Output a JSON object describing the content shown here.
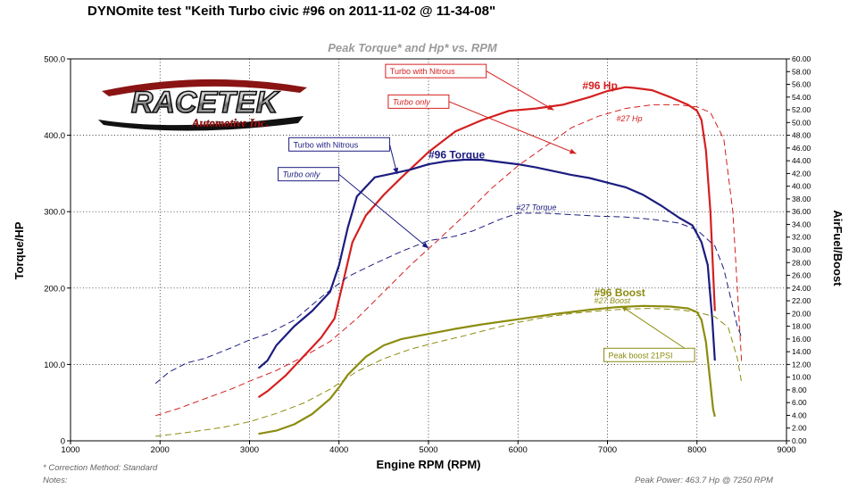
{
  "page": {
    "title": "DYNOmite test \"Keith Turbo civic  #96 on 2011-11-02 @ 11-34-08\"",
    "logo_text": "RACETEK",
    "logo_subtext": "Automotive Inc.",
    "footer_correction": "* Correction Method: Standard",
    "footer_notes": "Notes:",
    "footer_peak": "Peak Power: 463.7 Hp @ 7250 RPM"
  },
  "chart_data": {
    "type": "line",
    "title": "Peak Torque* and Hp* vs. RPM",
    "xlabel": "Engine RPM (RPM)",
    "ylabel": "Torque/HP",
    "y2label": "AirFuel/Boost",
    "xlim": [
      1000,
      9000
    ],
    "ylim": [
      0,
      500
    ],
    "y2lim": [
      0,
      60
    ],
    "xticks": [
      "1000",
      "2000",
      "3000",
      "4000",
      "5000",
      "6000",
      "7000",
      "8000",
      "9000"
    ],
    "yticks": [
      "0",
      "100.0",
      "200.0",
      "300.0",
      "400.0",
      "500.0"
    ],
    "y2ticks": [
      "0.00",
      "2.00",
      "4.00",
      "6.00",
      "8.00",
      "10.00",
      "12.00",
      "14.00",
      "16.00",
      "18.00",
      "20.00",
      "22.00",
      "24.00",
      "26.00",
      "28.00",
      "30.00",
      "32.00",
      "34.00",
      "36.00",
      "38.00",
      "40.00",
      "42.00",
      "44.00",
      "46.00",
      "48.00",
      "50.00",
      "52.00",
      "54.00",
      "56.00",
      "58.00",
      "60.00"
    ],
    "grid": true,
    "colors": {
      "torque": "#1c1c80",
      "hp": "#d42020",
      "boost": "#8c8c10",
      "baseline": "#333333"
    },
    "series": [
      {
        "name": "#96 Hp",
        "axis": "left",
        "color": "#d42020",
        "dash": false,
        "x": [
          3100,
          3200,
          3400,
          3600,
          3800,
          3950,
          4050,
          4150,
          4300,
          4500,
          4700,
          5000,
          5300,
          5600,
          5900,
          6200,
          6500,
          6800,
          7000,
          7200,
          7300,
          7500,
          7700,
          7900,
          8000,
          8050,
          8100,
          8150,
          8200
        ],
        "y": [
          57,
          65,
          85,
          110,
          135,
          160,
          210,
          260,
          295,
          322,
          345,
          378,
          405,
          420,
          432,
          435,
          440,
          450,
          458,
          463,
          462,
          459,
          450,
          440,
          432,
          420,
          380,
          300,
          170
        ]
      },
      {
        "name": "#96 Torque",
        "axis": "left",
        "color": "#1c1c80",
        "dash": false,
        "x": [
          3100,
          3200,
          3300,
          3500,
          3700,
          3900,
          4000,
          4100,
          4200,
          4400,
          4600,
          4800,
          5000,
          5200,
          5400,
          5600,
          5800,
          6000,
          6200,
          6400,
          6600,
          6800,
          7000,
          7200,
          7400,
          7600,
          7800,
          7950,
          8050,
          8120,
          8170,
          8200
        ],
        "y": [
          95,
          105,
          125,
          150,
          170,
          195,
          230,
          280,
          320,
          345,
          350,
          355,
          362,
          366,
          368,
          368,
          365,
          362,
          358,
          353,
          348,
          344,
          338,
          332,
          322,
          308,
          292,
          282,
          260,
          230,
          160,
          105
        ]
      },
      {
        "name": "#27 Hp",
        "axis": "left",
        "color": "#d42020",
        "dash": true,
        "x": [
          1950,
          2200,
          2500,
          2800,
          3000,
          3300,
          3600,
          3900,
          4200,
          4500,
          4800,
          5100,
          5400,
          5700,
          6000,
          6300,
          6600,
          6900,
          7200,
          7500,
          7800,
          8000,
          8150,
          8300,
          8400,
          8450,
          8500
        ],
        "y": [
          33,
          42,
          55,
          68,
          78,
          92,
          110,
          130,
          160,
          195,
          230,
          262,
          295,
          330,
          360,
          385,
          410,
          425,
          435,
          440,
          440,
          437,
          430,
          395,
          300,
          200,
          100
        ]
      },
      {
        "name": "#27 Torque",
        "axis": "left",
        "color": "#1c1c80",
        "dash": true,
        "x": [
          1950,
          2100,
          2300,
          2500,
          2800,
          3000,
          3200,
          3500,
          3800,
          4100,
          4400,
          4700,
          5000,
          5300,
          5500,
          5800,
          6000,
          6300,
          6600,
          6900,
          7200,
          7500,
          7800,
          8000,
          8200,
          8300,
          8400,
          8450,
          8500
        ],
        "y": [
          75,
          90,
          102,
          108,
          122,
          132,
          140,
          158,
          188,
          215,
          232,
          248,
          262,
          268,
          275,
          290,
          298,
          298,
          296,
          294,
          293,
          290,
          285,
          276,
          255,
          225,
          175,
          150,
          135
        ]
      },
      {
        "name": "#96 Boost",
        "axis": "right",
        "color": "#8c8c10",
        "dash": false,
        "x": [
          3100,
          3300,
          3500,
          3700,
          3900,
          4000,
          4100,
          4300,
          4500,
          4700,
          5000,
          5300,
          5600,
          6000,
          6400,
          6800,
          7100,
          7400,
          7700,
          7900,
          8000,
          8050,
          8100,
          8150,
          8180,
          8200
        ],
        "y": [
          1.1,
          1.6,
          2.6,
          4.2,
          6.6,
          8.4,
          10.4,
          13.2,
          15.0,
          16.0,
          16.8,
          17.6,
          18.3,
          19.1,
          19.9,
          20.6,
          21.0,
          21.2,
          21.1,
          20.8,
          20.2,
          19.0,
          15.5,
          9.0,
          5.0,
          3.8
        ]
      },
      {
        "name": "#27 Boost",
        "axis": "right",
        "color": "#8c8c10",
        "dash": true,
        "x": [
          1950,
          2300,
          2700,
          3000,
          3300,
          3600,
          3900,
          4200,
          4500,
          4800,
          5100,
          5400,
          5700,
          6000,
          6300,
          6600,
          6900,
          7200,
          7500,
          7800,
          8000,
          8200,
          8350,
          8450,
          8500
        ],
        "y": [
          0.7,
          1.3,
          2.1,
          3.0,
          4.3,
          5.9,
          8.1,
          10.9,
          12.9,
          14.4,
          15.5,
          16.5,
          17.6,
          18.6,
          19.4,
          20.0,
          20.4,
          20.7,
          20.8,
          20.6,
          20.2,
          19.5,
          17.8,
          13.0,
          9.0
        ]
      }
    ],
    "series_labels": [
      {
        "text": "#96 Hp",
        "x": 6720,
        "y": 460,
        "color": "#d42020",
        "size": 12,
        "bold": true
      },
      {
        "text": "#27 Hp",
        "x": 7100,
        "y": 418,
        "color": "#d42020",
        "size": 9,
        "bold": false,
        "italic": true
      },
      {
        "text": "#96 Torque",
        "x": 5000,
        "y": 370,
        "color": "#1c1c80",
        "size": 12,
        "bold": true
      },
      {
        "text": "#27 Torque",
        "x": 5980,
        "y": 302,
        "color": "#1c1c80",
        "size": 9,
        "bold": false,
        "italic": true
      },
      {
        "text": "#96 Boost",
        "x": 6850,
        "y2": 22.7,
        "color": "#8c8c10",
        "size": 12,
        "bold": true
      },
      {
        "text": "#27 Boost",
        "x": 6850,
        "y2": 21.6,
        "color": "#8c8c10",
        "size": 9,
        "bold": false,
        "italic": true
      }
    ],
    "annotations": [
      {
        "text": "Turbo with Nitrous",
        "x": 4560,
        "y": 480,
        "color": "#d42020",
        "italic": false,
        "arrow_to": [
          6400,
          433
        ]
      },
      {
        "text": "Turbo only",
        "x": 4590,
        "y": 440,
        "color": "#d42020",
        "italic": true,
        "arrow_to": [
          6650,
          376
        ]
      },
      {
        "text": "Turbo with Nitrous",
        "x": 3480,
        "y": 384,
        "color": "#1c1c80",
        "italic": false,
        "arrow_to": [
          4650,
          349
        ]
      },
      {
        "text": "Turbo only",
        "x": 3360,
        "y": 345,
        "color": "#1c1c80",
        "italic": true,
        "arrow_to": [
          5000,
          252
        ]
      },
      {
        "text": "Peak boost 21PSI",
        "x": 7000,
        "y2": 13.0,
        "color": "#8c8c10",
        "italic": false,
        "arrow_to": [
          7150,
          21.2
        ]
      }
    ]
  }
}
